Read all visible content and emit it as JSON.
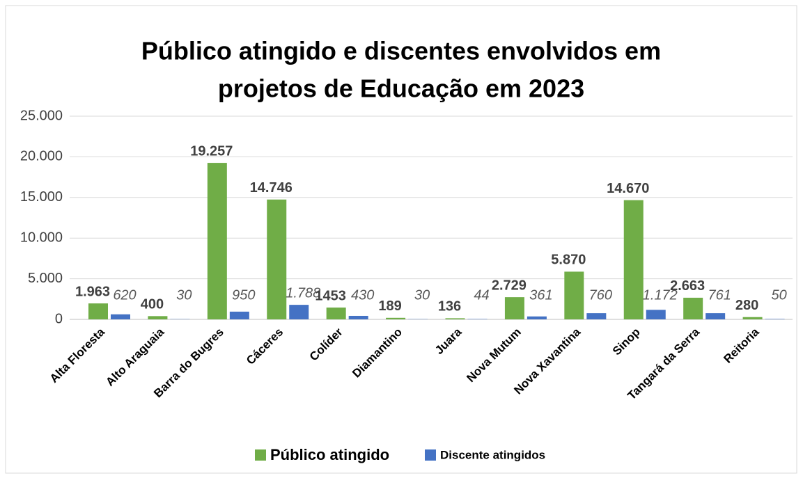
{
  "chart_data": {
    "type": "bar",
    "title": [
      "Público atingido e discentes envolvidos em",
      "projetos de Educação em 2023"
    ],
    "categories": [
      "Alta Floresta",
      "Alto Araguaia",
      "Barra do Bugres",
      "Cáceres",
      "Colíder",
      "Diamantino",
      "Juara",
      "Nova Mutum",
      "Nova Xavantina",
      "Sinop",
      "Tangará da Serra",
      "Reitoria"
    ],
    "series": [
      {
        "name": "Público atingido",
        "color": "#70ad47",
        "values": [
          1963,
          400,
          19257,
          14746,
          1453,
          189,
          136,
          2729,
          5870,
          14670,
          2663,
          280
        ],
        "value_labels": [
          "1.963",
          "400",
          "19.257",
          "14.746",
          "1453",
          "189",
          "136",
          "2.729",
          "5.870",
          "14.670",
          "2.663",
          "280"
        ]
      },
      {
        "name": "Discente atingidos",
        "color": "#4472c4",
        "values": [
          620,
          30,
          950,
          1788,
          430,
          30,
          44,
          361,
          760,
          1172,
          761,
          50
        ],
        "value_labels": [
          "620",
          "30",
          "950",
          "1.788",
          "430",
          "30",
          "44",
          "361",
          "760",
          "1.172",
          "761",
          "50"
        ]
      }
    ],
    "ylim": [
      0,
      25000
    ],
    "yticks": [
      0,
      {
        "value": 5000,
        "label": "5.000"
      },
      {
        "value": 10000,
        "label": "10.000"
      },
      {
        "value": 15000,
        "label": "15.000"
      },
      {
        "value": 20000,
        "label": "20.000"
      },
      {
        "value": 25000,
        "label": "25.000"
      }
    ],
    "grid": true,
    "legend": "bottom"
  }
}
